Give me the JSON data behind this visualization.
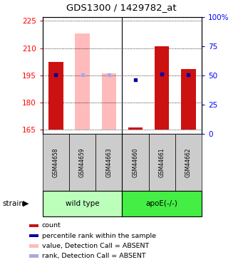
{
  "title": "GDS1300 / 1429782_at",
  "samples": [
    "GSM44658",
    "GSM44659",
    "GSM44663",
    "GSM44660",
    "GSM44661",
    "GSM44662"
  ],
  "group_labels": [
    "wild type",
    "apoE(-/-)"
  ],
  "wt_color": "#bbffbb",
  "apoe_color": "#44ee44",
  "ylim_left": [
    163,
    227
  ],
  "ylim_right": [
    0,
    100
  ],
  "yticks_left": [
    165,
    180,
    195,
    210,
    225
  ],
  "yticks_right": [
    0,
    25,
    50,
    75,
    100
  ],
  "ytick_labels_right": [
    "0",
    "25",
    "50",
    "75",
    "100%"
  ],
  "red_bar_values": [
    202.5,
    null,
    null,
    166.5,
    211.0,
    198.5
  ],
  "pink_bar_values": [
    null,
    218.0,
    196.0,
    null,
    null,
    null
  ],
  "blue_square_values": [
    50.5,
    null,
    null,
    46.5,
    51.0,
    50.5
  ],
  "light_blue_square_values": [
    null,
    50.5,
    50.5,
    null,
    null,
    null
  ],
  "bar_bottom": 165,
  "bar_width": 0.55,
  "red_bar_color": "#cc1111",
  "pink_bar_color": "#ffbbbb",
  "blue_sq_color": "#0000aa",
  "light_blue_sq_color": "#aaaadd",
  "sample_bg": "#cccccc",
  "legend_items": [
    {
      "label": "count",
      "color": "#cc1111"
    },
    {
      "label": "percentile rank within the sample",
      "color": "#0000aa"
    },
    {
      "label": "value, Detection Call = ABSENT",
      "color": "#ffbbbb"
    },
    {
      "label": "rank, Detection Call = ABSENT",
      "color": "#aaaadd"
    }
  ]
}
